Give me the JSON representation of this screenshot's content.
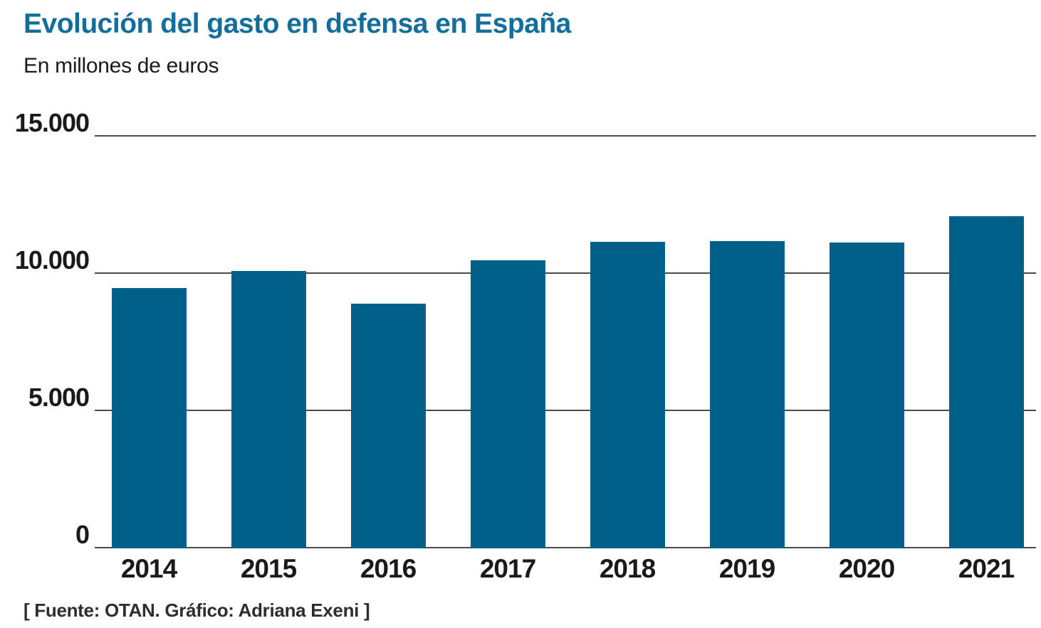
{
  "chart_data": {
    "type": "bar",
    "title": "Evolución del gasto en defensa en España",
    "subtitle": "En millones de euros",
    "source": "[ Fuente: OTAN. Gráfico: Adriana Exeni ]",
    "categories": [
      "2014",
      "2015",
      "2016",
      "2017",
      "2018",
      "2019",
      "2020",
      "2021"
    ],
    "values": [
      9440,
      10070,
      8880,
      10460,
      11130,
      11160,
      11110,
      12060
    ],
    "xlabel": "",
    "ylabel": "En millones de euros",
    "ylim": [
      0,
      15000
    ],
    "yticks": [
      {
        "value": 15000,
        "label": "15.000"
      },
      {
        "value": 10000,
        "label": "10.000"
      },
      {
        "value": 5000,
        "label": "5.000"
      },
      {
        "value": 0,
        "label": "0"
      }
    ],
    "grid": true,
    "legend": "none",
    "bar_color": "#00608a",
    "title_color": "#146e9c",
    "grid_color": "#4a4a4a"
  }
}
